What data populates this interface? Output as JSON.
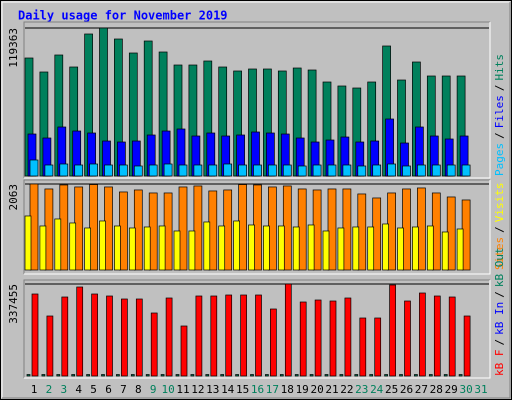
{
  "chart_data": [
    {
      "type": "bar",
      "title": "Daily usage for November 2019",
      "ylim": [
        0,
        119363
      ],
      "yticks": [
        119363
      ],
      "legend_separator": "/",
      "series": [
        {
          "name": "Pages",
          "color": "#00c0ff",
          "values": [
            12900,
            8870,
            9680,
            8870,
            9680,
            8870,
            8870,
            8070,
            8870,
            9680,
            8870,
            8870,
            8870,
            9680,
            8870,
            8870,
            8870,
            8870,
            8070,
            8870,
            8870,
            8870,
            8070,
            8870,
            9680,
            8070,
            8870,
            8870,
            8870,
            8870,
            null
          ]
        },
        {
          "name": "Files",
          "color": "#0000ff",
          "values": [
            33870,
            30650,
            39520,
            36290,
            34680,
            28230,
            27420,
            28230,
            33070,
            36290,
            37910,
            32260,
            34680,
            32260,
            33070,
            35490,
            34680,
            33870,
            30650,
            27420,
            29030,
            31450,
            27420,
            28230,
            45970,
            26610,
            39520,
            32260,
            29840,
            32260,
            null
          ]
        },
        {
          "name": "Hits",
          "color": "#00805c",
          "values": [
            95170,
            83880,
            97590,
            87910,
            114530,
            119363,
            110490,
            99200,
            108880,
            100010,
            89520,
            89520,
            92750,
            87910,
            84690,
            86300,
            86300,
            84690,
            87100,
            85490,
            75810,
            72590,
            70970,
            75810,
            104850,
            77420,
            91940,
            80650,
            80650,
            80650,
            null
          ]
        }
      ]
    },
    {
      "type": "bar",
      "ylim": [
        0,
        2063
      ],
      "yticks": [
        2063
      ],
      "legend_separator": "/",
      "series": [
        {
          "name": "Sites",
          "color": "#ff8000",
          "values": [
            2063,
            1944,
            2040,
            1992,
            2050,
            1992,
            1872,
            1920,
            1848,
            1848,
            1992,
            2016,
            1896,
            1920,
            2050,
            2040,
            1992,
            2016,
            1944,
            1920,
            1944,
            1944,
            1824,
            1728,
            1848,
            1944,
            1968,
            1848,
            1752,
            1680,
            null
          ]
        },
        {
          "name": "Visits",
          "color": "#ffff00",
          "values": [
            1296,
            1056,
            1224,
            1128,
            1008,
            1176,
            1056,
            1008,
            1032,
            1056,
            936,
            936,
            1152,
            1056,
            1176,
            1080,
            1056,
            1056,
            1032,
            1080,
            936,
            1008,
            1032,
            1032,
            1104,
            1008,
            1032,
            1056,
            912,
            984,
            null
          ]
        }
      ]
    },
    {
      "type": "bar",
      "ylim": [
        0,
        337455
      ],
      "yticks": [
        337455
      ],
      "legend_separator": "/",
      "categories": [
        "1",
        "2",
        "3",
        "4",
        "5",
        "6",
        "7",
        "8",
        "9",
        "10",
        "11",
        "12",
        "13",
        "14",
        "15",
        "16",
        "17",
        "18",
        "19",
        "20",
        "21",
        "22",
        "23",
        "24",
        "25",
        "26",
        "27",
        "28",
        "29",
        "30",
        "31"
      ],
      "category_colors": [
        "#000000",
        "#00805c",
        "#00805c",
        "#000000",
        "#000000",
        "#000000",
        "#000000",
        "#000000",
        "#00805c",
        "#00805c",
        "#000000",
        "#000000",
        "#000000",
        "#000000",
        "#000000",
        "#00805c",
        "#00805c",
        "#000000",
        "#000000",
        "#000000",
        "#000000",
        "#000000",
        "#00805c",
        "#00805c",
        "#000000",
        "#000000",
        "#000000",
        "#000000",
        "#000000",
        "#00805c",
        "#00805c"
      ],
      "series": [
        {
          "name": "kB F",
          "color": "#ff0000",
          "values": [
            300780,
            220080,
            289770,
            326450,
            300780,
            293440,
            282440,
            282440,
            231080,
            286100,
            183400,
            293440,
            293440,
            297110,
            297110,
            297110,
            245760,
            337455,
            271430,
            278770,
            275100,
            286100,
            212740,
            212740,
            333790,
            275100,
            304440,
            293440,
            289770,
            220080,
            null
          ]
        },
        {
          "name": "kB In",
          "color": "#0000ff",
          "values": [
            0,
            0,
            0,
            0,
            0,
            0,
            0,
            0,
            0,
            0,
            0,
            0,
            0,
            0,
            0,
            0,
            0,
            0,
            0,
            0,
            0,
            0,
            0,
            0,
            0,
            0,
            0,
            0,
            0,
            0,
            null
          ]
        },
        {
          "name": "kB Out",
          "color": "#00805c",
          "values": [
            5500,
            5500,
            5500,
            5500,
            5500,
            5500,
            5500,
            5500,
            5500,
            5500,
            5500,
            5500,
            5500,
            5500,
            5500,
            5500,
            5500,
            5500,
            5500,
            5500,
            5500,
            5500,
            5500,
            5500,
            5500,
            5500,
            5500,
            5500,
            5500,
            5500,
            null
          ]
        }
      ]
    }
  ]
}
